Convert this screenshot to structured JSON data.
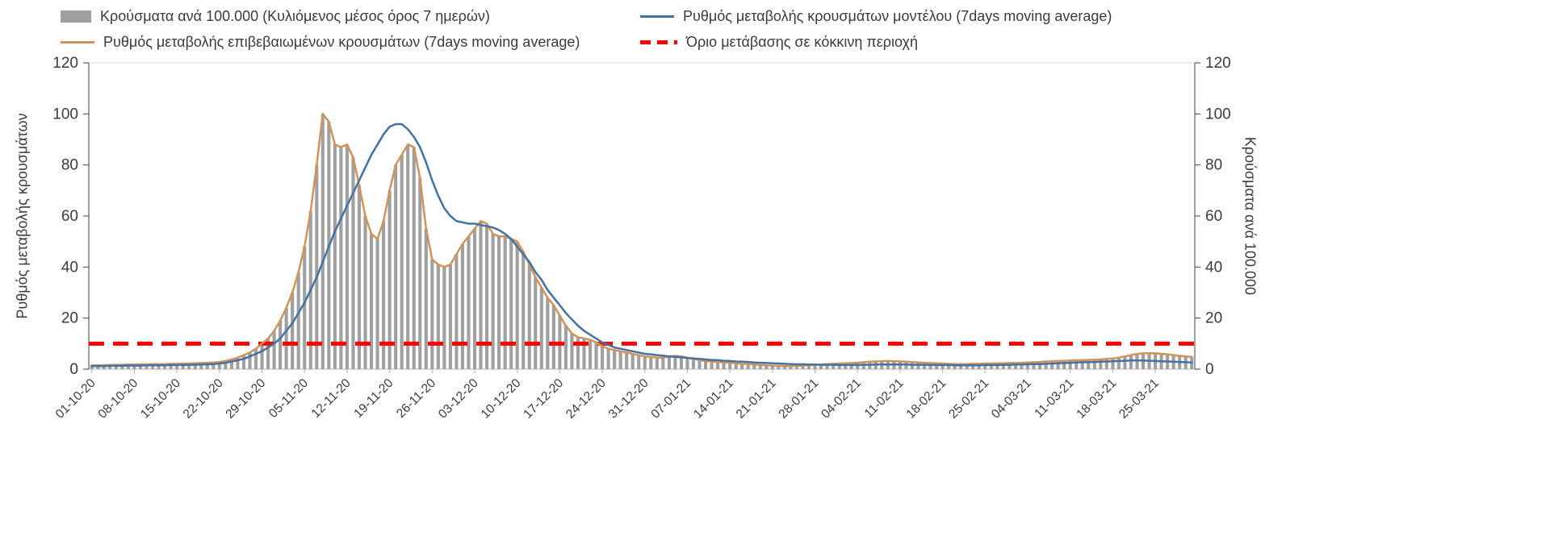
{
  "page": {
    "background": "#ffffff",
    "text_color": "#3b3b3b"
  },
  "legend": {
    "items": [
      {
        "id": "bars",
        "swatch": "bar",
        "color": "#a0a0a0",
        "label": "Κρούσματα ανά 100.000 (Κυλιόμενος μέσος όρος 7 ημερών)"
      },
      {
        "id": "model",
        "swatch": "line",
        "color": "#4472a4",
        "label": "Ρυθμός μεταβολής κρουσμάτων μοντέλου (7days moving average)"
      },
      {
        "id": "confirmed",
        "swatch": "line",
        "color": "#d0945a",
        "label": "Ρυθμός μεταβολής επιβεβαιωμένων κρουσμάτων (7days moving average)"
      },
      {
        "id": "threshold",
        "swatch": "dash",
        "color": "#ff0000",
        "label": "Όριο μετάβασης σε κόκκινη περιοχή"
      }
    ]
  },
  "axes": {
    "left_title": "Ρυθμός μεταβολής κρουσμάτων",
    "right_title": "Κρούσματα ανά 100.000",
    "y_ticks": [
      0,
      20,
      40,
      60,
      80,
      100,
      120
    ]
  },
  "chart_data": {
    "type": "bar",
    "subtype": "combo-bar-line",
    "x_start": "01-10-20",
    "x_end": "31-03-21",
    "x_cadence": "daily",
    "n_points": 182,
    "ylim": [
      0,
      120
    ],
    "y_ticks": [
      0,
      20,
      40,
      60,
      80,
      100,
      120
    ],
    "grid": false,
    "legend_position": "top",
    "x_tick_indices": [
      0,
      7,
      14,
      21,
      28,
      35,
      42,
      49,
      56,
      63,
      70,
      77,
      84,
      91,
      98,
      105,
      112,
      119,
      126,
      133,
      140,
      147,
      154,
      161,
      168,
      175
    ],
    "x_tick_labels": [
      "01-10-20",
      "08-10-20",
      "15-10-20",
      "22-10-20",
      "29-10-20",
      "05-11-20",
      "12-11-20",
      "19-11-20",
      "26-11-20",
      "03-12-20",
      "10-12-20",
      "17-12-20",
      "24-12-20",
      "31-12-20",
      "07-01-21",
      "14-01-21",
      "21-01-21",
      "28-01-21",
      "04-02-21",
      "11-02-21",
      "18-02-21",
      "25-02-21",
      "04-03-21",
      "11-03-21",
      "18-03-21",
      "25-03-21"
    ],
    "threshold": {
      "label": "Όριο μετάβασης σε κόκκινη περιοχή",
      "value": 10,
      "color": "#ff0000"
    },
    "series": [
      {
        "id": "bars",
        "name": "Κρούσματα ανά 100.000 (Κυλιόμενος μέσος όρος 7 ημερών)",
        "type": "bar",
        "axis": "right",
        "color": "#a0a0a0",
        "values": [
          1.5,
          1.5,
          1.6,
          1.6,
          1.7,
          1.7,
          1.8,
          1.8,
          1.9,
          1.9,
          2,
          2,
          2,
          2.1,
          2.1,
          2.2,
          2.2,
          2.3,
          2.4,
          2.5,
          2.6,
          2.8,
          3.2,
          3.8,
          4.5,
          5.5,
          6.5,
          8,
          10,
          12,
          15,
          19,
          24,
          30,
          38,
          48,
          62,
          80,
          100,
          97,
          88,
          87,
          88,
          83,
          72,
          60,
          53,
          51,
          58,
          70,
          80,
          84,
          88,
          87,
          75,
          55,
          43,
          41,
          40,
          41,
          45,
          49,
          52,
          55,
          58,
          57,
          53,
          52,
          52,
          51,
          50,
          46,
          41,
          36,
          32,
          28,
          25,
          21,
          17,
          14,
          12.5,
          12,
          11.5,
          10.5,
          9,
          8,
          7.5,
          7,
          6.5,
          6,
          5.5,
          5,
          4.8,
          4.5,
          4.5,
          5,
          5.2,
          5,
          4.5,
          4,
          3.5,
          3.2,
          3,
          2.8,
          2.6,
          2.5,
          2.3,
          2.1,
          2,
          1.8,
          1.6,
          1.5,
          1.4,
          1.3,
          1.2,
          1.2,
          1.3,
          1.4,
          1.5,
          1.6,
          1.8,
          2,
          2.1,
          2.2,
          2.3,
          2.4,
          2.5,
          2.7,
          2.9,
          3,
          3.1,
          3.2,
          3.1,
          3,
          2.9,
          2.8,
          2.6,
          2.5,
          2.4,
          2.3,
          2.2,
          2.1,
          2,
          2,
          2,
          2.1,
          2.1,
          2.2,
          2.2,
          2.3,
          2.3,
          2.4,
          2.4,
          2.5,
          2.6,
          2.7,
          2.8,
          3,
          3.1,
          3.2,
          3.3,
          3.4,
          3.5,
          3.5,
          3.6,
          3.7,
          3.8,
          4,
          4.2,
          4.5,
          5,
          5.5,
          6,
          6.2,
          6.3,
          6.2,
          6,
          5.8,
          5.5,
          5.2,
          5,
          4.8
        ]
      },
      {
        "id": "confirmed",
        "name": "Ρυθμός μεταβολής επιβεβαιωμένων κρουσμάτων (7days moving average)",
        "type": "line",
        "axis": "left",
        "color": "#d0945a",
        "values": [
          1.5,
          1.5,
          1.6,
          1.6,
          1.7,
          1.7,
          1.8,
          1.8,
          1.9,
          1.9,
          2,
          2,
          2,
          2.1,
          2.1,
          2.2,
          2.2,
          2.3,
          2.4,
          2.5,
          2.6,
          2.8,
          3.2,
          3.8,
          4.5,
          5.5,
          6.5,
          8,
          10,
          12,
          15,
          19,
          24,
          30,
          38,
          48,
          62,
          80,
          100,
          97,
          88,
          87,
          88,
          83,
          72,
          60,
          53,
          51,
          58,
          70,
          80,
          84,
          88,
          87,
          75,
          55,
          43,
          41,
          40,
          41,
          45,
          49,
          52,
          55,
          58,
          57,
          53,
          52,
          52,
          51,
          50,
          46,
          41,
          36,
          32,
          28,
          25,
          21,
          17,
          14,
          12.5,
          12,
          11.5,
          10.5,
          9,
          8,
          7.5,
          7,
          6.5,
          6,
          5.5,
          5,
          4.8,
          4.5,
          4.5,
          5,
          5.2,
          5,
          4.5,
          4,
          3.5,
          3.2,
          3,
          2.8,
          2.6,
          2.5,
          2.3,
          2.1,
          2,
          1.8,
          1.6,
          1.5,
          1.4,
          1.3,
          1.2,
          1.2,
          1.3,
          1.4,
          1.5,
          1.6,
          1.8,
          2,
          2.1,
          2.2,
          2.3,
          2.4,
          2.5,
          2.7,
          2.9,
          3,
          3.1,
          3.2,
          3.1,
          3,
          2.9,
          2.8,
          2.6,
          2.5,
          2.4,
          2.3,
          2.2,
          2.1,
          2,
          2,
          2,
          2.1,
          2.1,
          2.2,
          2.2,
          2.3,
          2.3,
          2.4,
          2.4,
          2.5,
          2.6,
          2.7,
          2.8,
          3,
          3.1,
          3.2,
          3.3,
          3.4,
          3.5,
          3.5,
          3.6,
          3.7,
          3.8,
          4,
          4.2,
          4.5,
          5,
          5.5,
          6,
          6.2,
          6.3,
          6.2,
          6,
          5.8,
          5.5,
          5.2,
          5,
          4.8
        ]
      },
      {
        "id": "model",
        "name": "Ρυθμός μεταβολής κρουσμάτων μοντέλου (7days moving average)",
        "type": "line",
        "axis": "left",
        "color": "#4472a4",
        "values": [
          1.2,
          1.2,
          1.2,
          1.3,
          1.3,
          1.3,
          1.4,
          1.4,
          1.4,
          1.5,
          1.5,
          1.5,
          1.5,
          1.6,
          1.6,
          1.6,
          1.7,
          1.7,
          1.8,
          1.9,
          2,
          2.2,
          2.5,
          3,
          3.5,
          4,
          5,
          6,
          7,
          8.5,
          10,
          12,
          15,
          18,
          22,
          26,
          31,
          36,
          42,
          48,
          54,
          59,
          64,
          69,
          74,
          79,
          84,
          88,
          92,
          95,
          96,
          96,
          94,
          91,
          87,
          81,
          74,
          68,
          63,
          60,
          58,
          57.5,
          57,
          57,
          56.5,
          56,
          55.5,
          54.5,
          53,
          51,
          48,
          45,
          42,
          38,
          35,
          31,
          28,
          25,
          22,
          19.5,
          17,
          15,
          13.5,
          12,
          10.5,
          9.5,
          8.5,
          8,
          7.5,
          7,
          6.5,
          6,
          5.8,
          5.5,
          5.3,
          5,
          4.8,
          4.6,
          4.4,
          4.2,
          4,
          3.8,
          3.6,
          3.5,
          3.3,
          3.2,
          3,
          2.9,
          2.8,
          2.6,
          2.5,
          2.4,
          2.3,
          2.2,
          2.1,
          2,
          1.9,
          1.9,
          1.8,
          1.8,
          1.7,
          1.7,
          1.7,
          1.6,
          1.6,
          1.6,
          1.6,
          1.7,
          1.7,
          1.8,
          1.8,
          1.8,
          1.8,
          1.8,
          1.8,
          1.7,
          1.7,
          1.7,
          1.6,
          1.6,
          1.6,
          1.6,
          1.5,
          1.5,
          1.5,
          1.5,
          1.5,
          1.6,
          1.6,
          1.6,
          1.7,
          1.7,
          1.8,
          1.8,
          1.9,
          2,
          2,
          2.1,
          2.2,
          2.3,
          2.4,
          2.5,
          2.6,
          2.7,
          2.7,
          2.8,
          2.9,
          3,
          3.1,
          3.2,
          3.3,
          3.4,
          3.4,
          3.4,
          3.3,
          3.2,
          3.1,
          3,
          2.9,
          2.8,
          2.7,
          2.6
        ]
      }
    ]
  }
}
